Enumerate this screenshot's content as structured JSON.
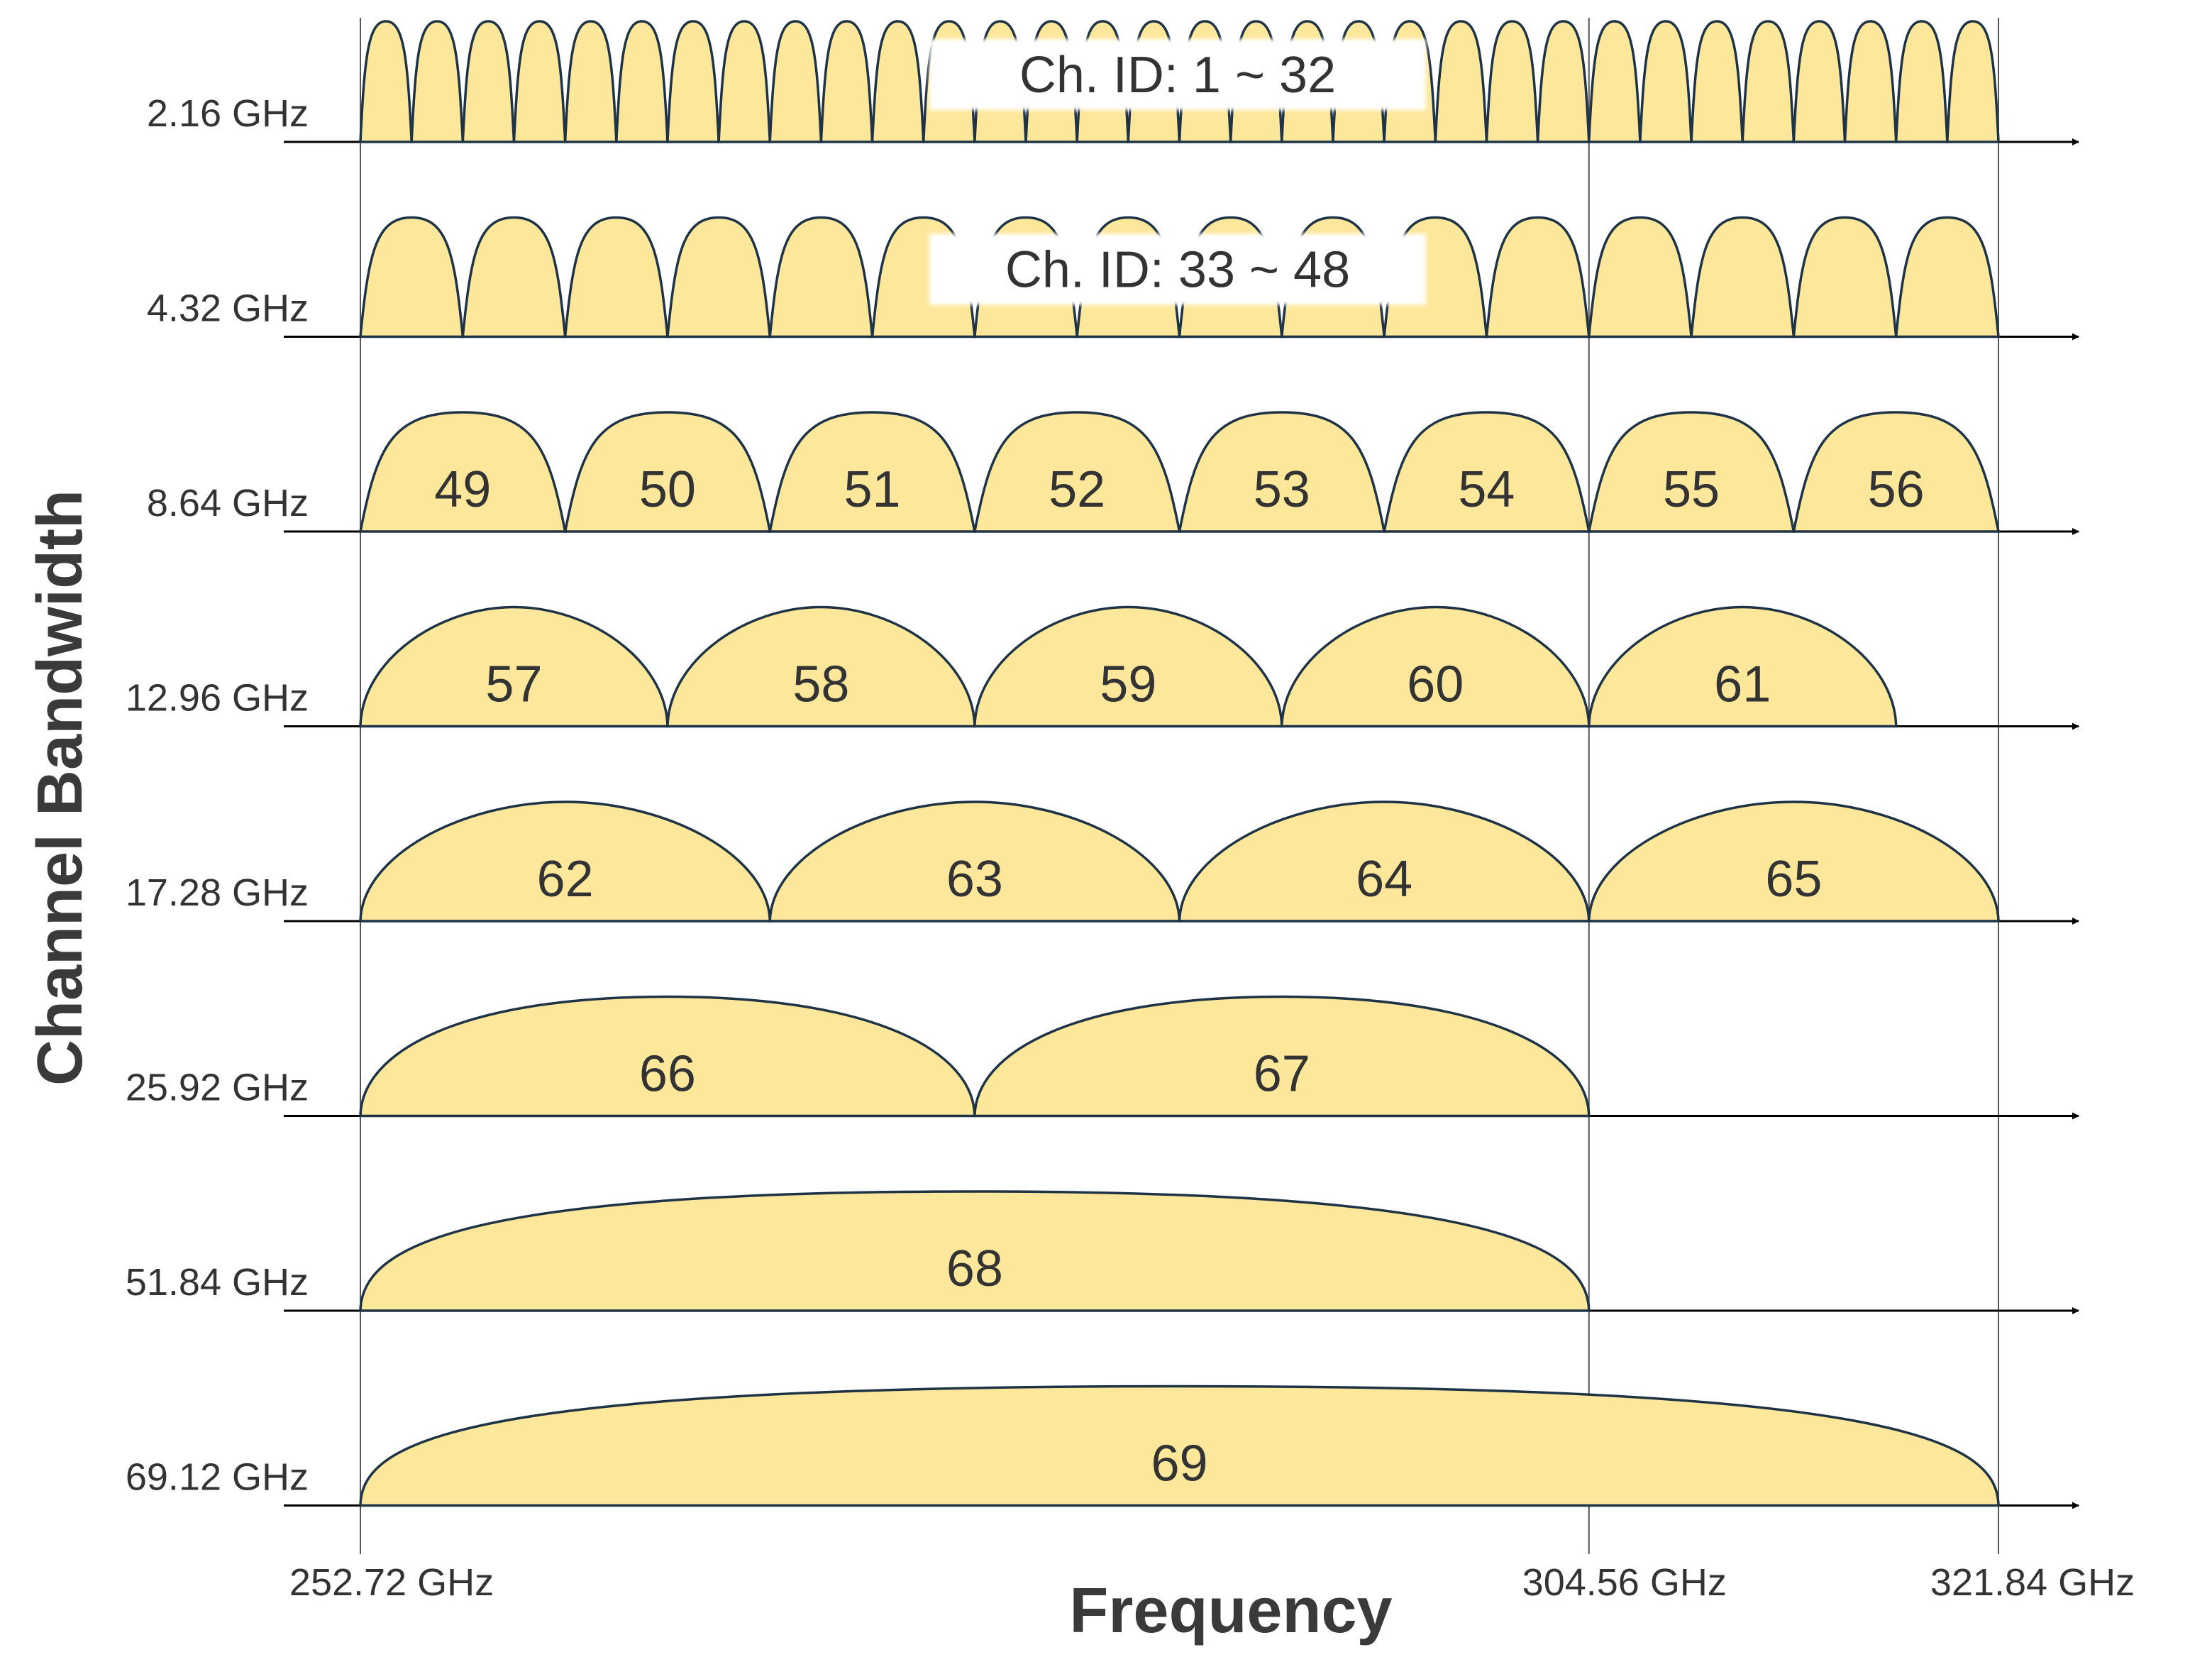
{
  "chart_data": {
    "type": "diagram",
    "xlabel": "Frequency",
    "ylabel": "Channel Bandwidth",
    "freq_start": 252.72,
    "freq_end": 321.84,
    "x_ticks": [
      {
        "value": 252.72,
        "label": "252.72 GHz"
      },
      {
        "value": 304.56,
        "label": "304.56 GHz"
      },
      {
        "value": 321.84,
        "label": "321.84 GHz"
      }
    ],
    "colors": {
      "fill": "#fde79a",
      "stroke": "#1f3346",
      "axis": "#000000",
      "grid": "#555555"
    },
    "rows": [
      {
        "bandwidth": 2.16,
        "label": "2.16 GHz",
        "count": 32,
        "first_id": 1,
        "range_label": "Ch. ID: 1 ~ 32",
        "show_ids": false
      },
      {
        "bandwidth": 4.32,
        "label": "4.32 GHz",
        "count": 16,
        "first_id": 33,
        "range_label": "Ch. ID: 33 ~ 48",
        "show_ids": false
      },
      {
        "bandwidth": 8.64,
        "label": "8.64 GHz",
        "count": 8,
        "first_id": 49,
        "show_ids": true,
        "ids": [
          "49",
          "50",
          "51",
          "52",
          "53",
          "54",
          "55",
          "56"
        ]
      },
      {
        "bandwidth": 12.96,
        "label": "12.96 GHz",
        "count": 5,
        "first_id": 57,
        "show_ids": true,
        "ids": [
          "57",
          "58",
          "59",
          "60",
          "61"
        ]
      },
      {
        "bandwidth": 17.28,
        "label": "17.28 GHz",
        "count": 4,
        "first_id": 62,
        "show_ids": true,
        "ids": [
          "62",
          "63",
          "64",
          "65"
        ]
      },
      {
        "bandwidth": 25.92,
        "label": "25.92 GHz",
        "count": 2,
        "first_id": 66,
        "show_ids": true,
        "ids": [
          "66",
          "67"
        ]
      },
      {
        "bandwidth": 51.84,
        "label": "51.84 GHz",
        "count": 1,
        "first_id": 68,
        "show_ids": true,
        "ids": [
          "68"
        ]
      },
      {
        "bandwidth": 69.12,
        "label": "69.12 GHz",
        "count": 1,
        "first_id": 69,
        "show_ids": true,
        "ids": [
          "69"
        ]
      }
    ]
  }
}
